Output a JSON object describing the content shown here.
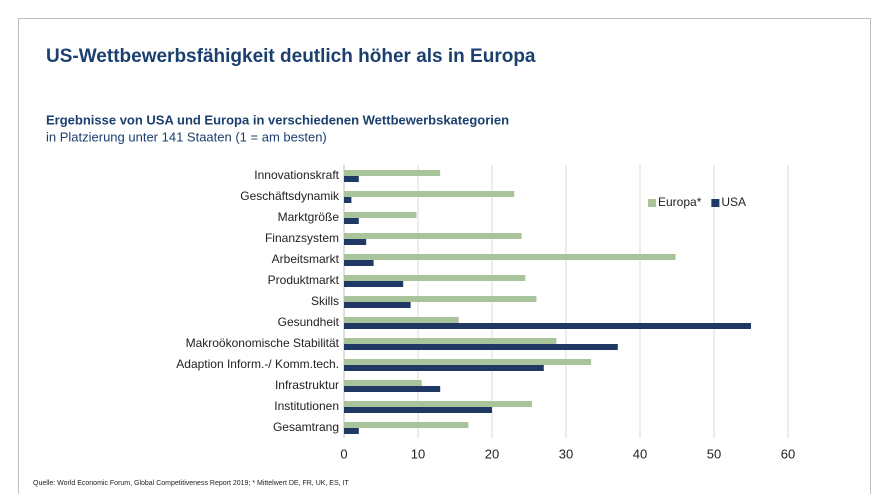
{
  "chart_data": {
    "type": "hbar",
    "title": "US-Wettbewerbsfähigkeit deutlich höher als in Europa",
    "subtitle": "Ergebnisse von USA und Europa in verschiedenen Wettbewerbskategorien",
    "subtitle2": "in Platzierung unter 141 Staaten (1 = am besten)",
    "source": "Quelle: World Economic Forum, Global Competitiveness Report 2019; * Mittelwert DE, FR, UK, ES, IT",
    "categories": [
      "Innovationskraft",
      "Geschäftsdynamik",
      "Marktgröße",
      "Finanzsystem",
      "Arbeitsmarkt",
      "Produktmarkt",
      "Skills",
      "Gesundheit",
      "Makroökonomische Stabilität",
      "Adaption Inform.-/ Komm.tech.",
      "Infrastruktur",
      "Institutionen",
      "Gesamtrang"
    ],
    "series": [
      {
        "name": "Europa*",
        "color": "#a9c49a",
        "values": [
          13,
          23,
          9.8,
          24,
          44.8,
          24.5,
          26,
          15.5,
          28.7,
          33.4,
          10.5,
          25.4,
          16.8
        ]
      },
      {
        "name": "USA",
        "color": "#1f3864",
        "values": [
          2,
          1,
          2,
          3,
          4,
          8,
          9,
          55,
          37,
          27,
          13,
          20,
          2
        ]
      }
    ],
    "xlim": [
      0,
      60
    ],
    "xticks": [
      0,
      10,
      20,
      30,
      40,
      50,
      60
    ],
    "grid": true,
    "legend": "upper right"
  }
}
